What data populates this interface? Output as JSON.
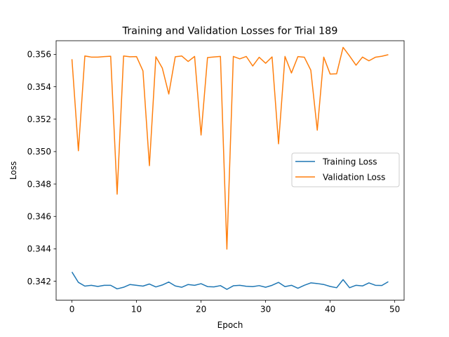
{
  "chart_data": {
    "type": "line",
    "title": "Training and Validation Losses for Trial 189",
    "xlabel": "Epoch",
    "ylabel": "Loss",
    "xlim": [
      -2.45,
      51.45
    ],
    "ylim": [
      0.34083,
      0.35684
    ],
    "xticks": [
      0,
      10,
      20,
      30,
      40,
      50
    ],
    "xtick_labels": [
      "0",
      "10",
      "20",
      "30",
      "40",
      "50"
    ],
    "yticks": [
      0.342,
      0.344,
      0.346,
      0.348,
      0.35,
      0.352,
      0.354,
      0.356
    ],
    "ytick_labels": [
      "0.342",
      "0.344",
      "0.346",
      "0.348",
      "0.350",
      "0.352",
      "0.354",
      "0.356"
    ],
    "grid": false,
    "legend_position": "center-right",
    "x": [
      0,
      1,
      2,
      3,
      4,
      5,
      6,
      7,
      8,
      9,
      10,
      11,
      12,
      13,
      14,
      15,
      16,
      17,
      18,
      19,
      20,
      21,
      22,
      23,
      24,
      25,
      26,
      27,
      28,
      29,
      30,
      31,
      32,
      33,
      34,
      35,
      36,
      37,
      38,
      39,
      40,
      41,
      42,
      43,
      44,
      45,
      46,
      47,
      48,
      49
    ],
    "series": [
      {
        "name": "Training Loss",
        "color": "#1f77b4",
        "values": [
          0.34257,
          0.34193,
          0.3417,
          0.34175,
          0.34168,
          0.34175,
          0.34175,
          0.34153,
          0.34163,
          0.3418,
          0.34175,
          0.3417,
          0.34183,
          0.34165,
          0.34177,
          0.34195,
          0.34171,
          0.34163,
          0.3418,
          0.34175,
          0.34185,
          0.34167,
          0.34165,
          0.34173,
          0.3415,
          0.34172,
          0.34175,
          0.34169,
          0.34167,
          0.34173,
          0.34163,
          0.34175,
          0.34193,
          0.34167,
          0.34175,
          0.34157,
          0.34175,
          0.3419,
          0.34186,
          0.3418,
          0.34168,
          0.3416,
          0.3421,
          0.3416,
          0.34175,
          0.34171,
          0.3419,
          0.34175,
          0.34174,
          0.34197
        ]
      },
      {
        "name": "Validation Loss",
        "color": "#ff7f0e",
        "values": [
          0.3557,
          0.35005,
          0.3559,
          0.35583,
          0.35583,
          0.35586,
          0.35588,
          0.34737,
          0.3559,
          0.35585,
          0.35586,
          0.35498,
          0.34913,
          0.35585,
          0.35515,
          0.35355,
          0.35585,
          0.3559,
          0.35556,
          0.35587,
          0.35102,
          0.3558,
          0.35584,
          0.35587,
          0.34398,
          0.35587,
          0.35572,
          0.35587,
          0.35528,
          0.35582,
          0.35545,
          0.35584,
          0.35048,
          0.35587,
          0.35485,
          0.35586,
          0.35582,
          0.35502,
          0.35132,
          0.35583,
          0.35478,
          0.3548,
          0.35643,
          0.3559,
          0.35533,
          0.35583,
          0.3556,
          0.35582,
          0.35588,
          0.35598
        ]
      }
    ]
  }
}
